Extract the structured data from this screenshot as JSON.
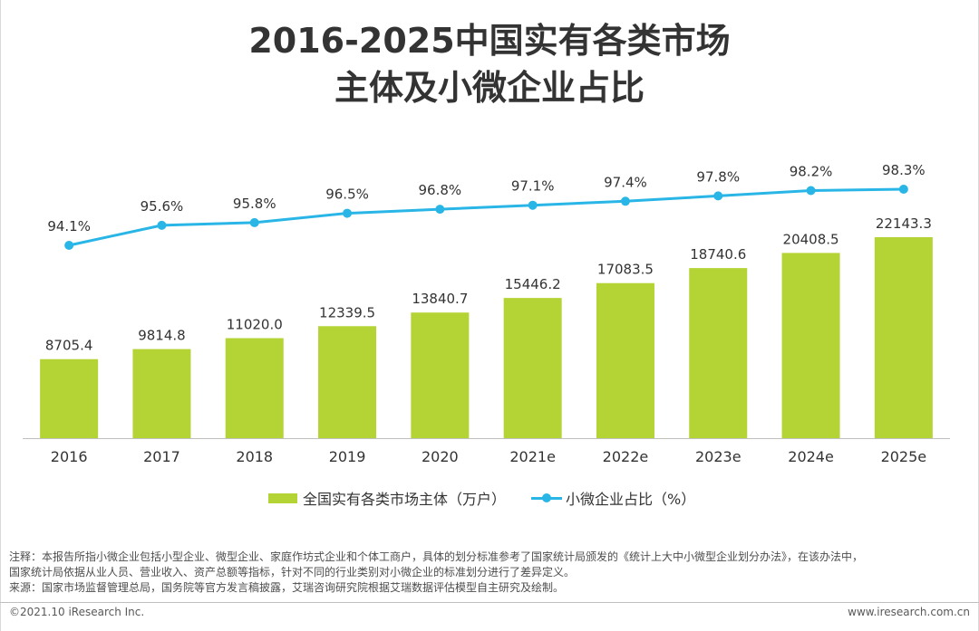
{
  "title": {
    "line1": "2016-2025中国实有各类市场",
    "line2": "主体及小微企业占比"
  },
  "colors": {
    "bar": "#b4d334",
    "line": "#29b6e6",
    "axis": "#bfbfbf",
    "text": "#333333"
  },
  "chart_data": {
    "type": "bar",
    "categories": [
      "2016",
      "2017",
      "2018",
      "2019",
      "2020",
      "2021e",
      "2022e",
      "2023e",
      "2024e",
      "2025e"
    ],
    "series": [
      {
        "name": "全国实有各类市场主体（万户）",
        "type": "bar",
        "values": [
          8705.4,
          9814.8,
          11020.0,
          12339.5,
          13840.7,
          15446.2,
          17083.5,
          18740.6,
          20408.5,
          22143.3
        ],
        "labels": [
          "8705.4",
          "9814.8",
          "11020.0",
          "12339.5",
          "13840.7",
          "15446.2",
          "17083.5",
          "18740.6",
          "20408.5",
          "22143.3"
        ]
      },
      {
        "name": "小微企业占比（%）",
        "type": "line",
        "values": [
          94.1,
          95.6,
          95.8,
          96.5,
          96.8,
          97.1,
          97.4,
          97.8,
          98.2,
          98.3
        ],
        "labels": [
          "94.1%",
          "95.6%",
          "95.8%",
          "96.5%",
          "96.8%",
          "97.1%",
          "97.4%",
          "97.8%",
          "98.2%",
          "98.3%"
        ]
      }
    ],
    "bar_axis_range": [
      0,
      22143.3
    ],
    "line_axis_range": [
      94.1,
      98.3
    ],
    "legend_position": "bottom"
  },
  "legend": {
    "bar_label": "全国实有各类市场主体（万户）",
    "line_label": "小微企业占比（%）"
  },
  "notes": {
    "line1": "注释：本报告所指小微企业包括小型企业、微型企业、家庭作坊式企业和个体工商户，具体的划分标准参考了国家统计局颁发的《统计上大中小微型企业划分办法》，在该办法中，",
    "line2": "国家统计局依据从业人员、营业收入、资产总额等指标，针对不同的行业类别对小微企业的标准划分进行了差异定义。",
    "line3": "来源：国家市场监督管理总局，国务院等官方发言稿披露，艾瑞咨询研究院根据艾瑞数据评估模型自主研究及绘制。"
  },
  "footer": {
    "copyright": "©2021.10 iResearch Inc.",
    "website": "www.iresearch.com.cn"
  }
}
